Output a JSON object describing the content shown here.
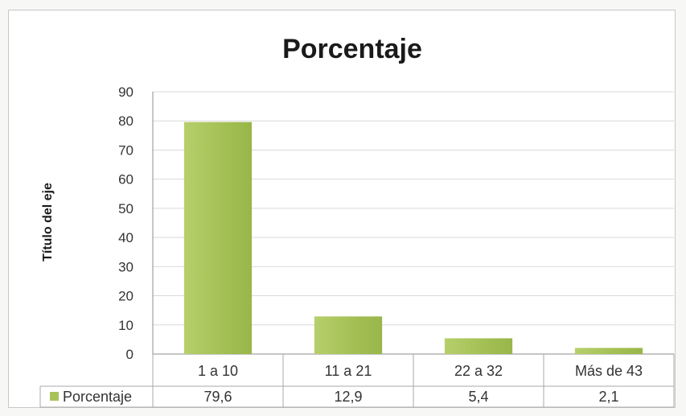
{
  "chart_data": {
    "type": "bar",
    "title": "Porcentaje",
    "xlabel": "",
    "ylabel": "Título del eje",
    "ylim": [
      0,
      90
    ],
    "yticks": [
      0,
      10,
      20,
      30,
      40,
      50,
      60,
      70,
      80,
      90
    ],
    "categories": [
      "1 a 10",
      "11 a 21",
      "22 a 32",
      "Más de 43"
    ],
    "series": [
      {
        "name": "Porcentaje",
        "values": [
          79.6,
          12.9,
          5.4,
          2.1
        ]
      }
    ],
    "data_table_values": [
      "79,6",
      "12,9",
      "5,4",
      "2,1"
    ],
    "grid": true,
    "legend": "data-table",
    "colors": {
      "bar": "#a8c35a",
      "bar_light": "#c9dc8c",
      "grid": "#d9d9d9",
      "axis": "#8c8c8c"
    }
  }
}
